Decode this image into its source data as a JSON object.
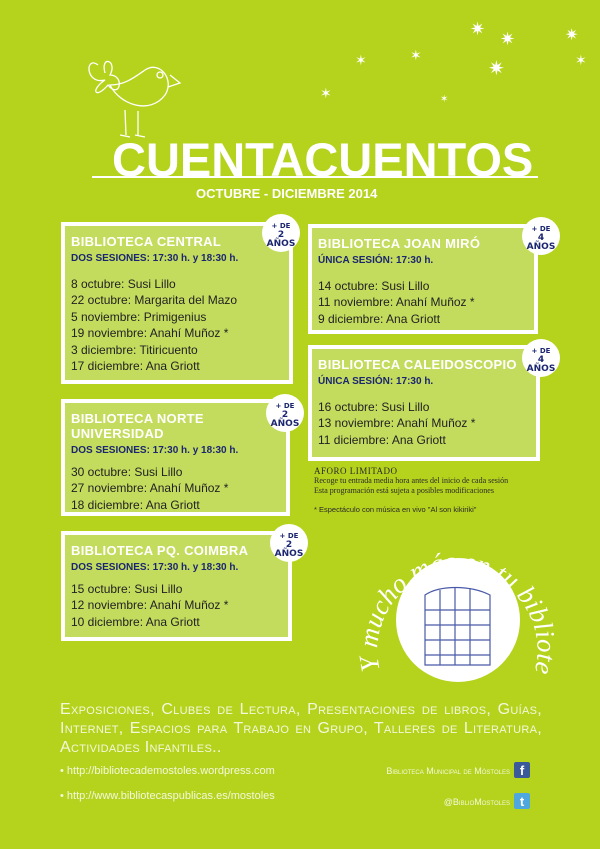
{
  "header": {
    "title": "CUENTACUENTOS",
    "subtitle": "OCTUBRE - DICIEMBRE 2014"
  },
  "libraries": [
    {
      "name": "BIBLIOTECA CENTRAL",
      "sessions": "DOS SESIONES: 17:30 h. y 18:30 h.",
      "age_top": "+ DE",
      "age_bottom": "2 AÑOS",
      "events": [
        "8 octubre: Susi Lillo",
        "22 octubre: Margarita del Mazo",
        "5 noviembre: Primigenius",
        "19 noviembre: Anahí Muñoz *",
        "3 diciembre: Titiricuento",
        "17 diciembre: Ana Griott"
      ]
    },
    {
      "name": "BIBLIOTECA NORTE UNIVERSIDAD",
      "sessions": "DOS SESIONES: 17:30 h. y 18:30 h.",
      "age_top": "+ DE",
      "age_bottom": "2 AÑOS",
      "events": [
        "30 octubre: Susi Lillo",
        "27 noviembre: Anahí Muñoz *",
        "18 diciembre: Ana Griott"
      ]
    },
    {
      "name": "BIBLIOTECA PQ. COIMBRA",
      "sessions": "DOS SESIONES: 17:30 h. y 18:30 h.",
      "age_top": "+ DE",
      "age_bottom": "2 AÑOS",
      "events": [
        "15 octubre: Susi Lillo",
        "12 noviembre: Anahí Muñoz *",
        "10 diciembre: Ana Griott"
      ]
    },
    {
      "name": "BIBLIOTECA JOAN MIRÓ",
      "sessions": "ÚNICA SESIÓN: 17:30 h.",
      "age_top": "+ DE",
      "age_bottom": "4 AÑOS",
      "events": [
        "14 octubre: Susi Lillo",
        "11 noviembre: Anahí Muñoz *",
        "9 diciembre: Ana Griott"
      ]
    },
    {
      "name": "BIBLIOTECA CALEIDOSCOPIO",
      "sessions": "ÚNICA SESIÓN: 17:30 h.",
      "age_top": "+ DE",
      "age_bottom": "4 AÑOS",
      "events": [
        "16 octubre: Susi Lillo",
        "13 noviembre: Anahí Muñoz *",
        "11 diciembre: Ana Griott"
      ]
    }
  ],
  "notes": {
    "heading": "AFORO LIMITADO",
    "line1": "Recoge tu entrada media hora antes del inicio de cada sesión",
    "line2": "Esta programación está sujeta a posibles modificaciones",
    "footnote": "* Espectáculo con música en vivo \"Al son kikiriki\""
  },
  "slogan": "Y mucho más en tu biblioteca:",
  "services": "Exposiciones, Clubes de Lectura, Presentaciones de libros, Guías, Internet, Espacios para Trabajo en Grupo, Talleres de Literatura, Actividades Infantiles..",
  "links": [
    "• http://bibliotecademostoles.wordpress.com",
    "• http://www.bibliotecaspublicas.es/mostoles"
  ],
  "social": {
    "facebook": "Biblioteca Municipal de Móstoles",
    "twitter": "@BiblioMostoles",
    "facebook_icon": "facebook-icon",
    "twitter_icon": "twitter-icon"
  },
  "colors": {
    "background": "#b5d31c",
    "box": "#c3dc5e",
    "session_text": "#1b2670"
  }
}
